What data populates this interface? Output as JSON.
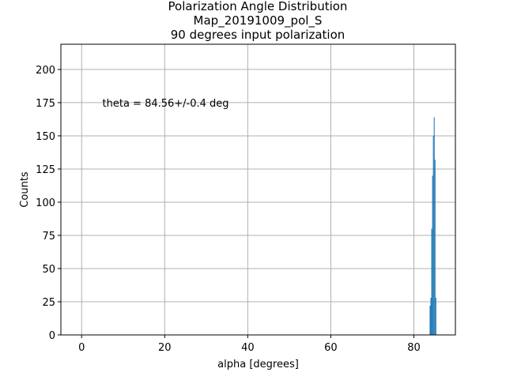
{
  "chart_data": {
    "type": "histogram",
    "title": [
      "Polarization Angle Distribution",
      "Map_20191009_pol_S",
      "90 degrees input polarization"
    ],
    "x_label": "alpha [degrees]",
    "y_label": "Counts",
    "bins": [
      83.8,
      84.0,
      84.2,
      84.4,
      84.6,
      84.8,
      85.0,
      85.2,
      85.4
    ],
    "counts": [
      22,
      28,
      80,
      120,
      150,
      164,
      132,
      28
    ],
    "color": "#1f77b4",
    "xlim": [
      -5,
      90
    ],
    "ylim": [
      0,
      219
    ],
    "xticks": [
      0,
      20,
      40,
      60,
      80
    ],
    "yticks": [
      0,
      25,
      50,
      75,
      100,
      125,
      150,
      175,
      200
    ],
    "grid": true,
    "annotation": {
      "text": "theta = 84.56+/-0.4 deg",
      "x": 5,
      "y": 175,
      "color": "#0000ff"
    }
  }
}
